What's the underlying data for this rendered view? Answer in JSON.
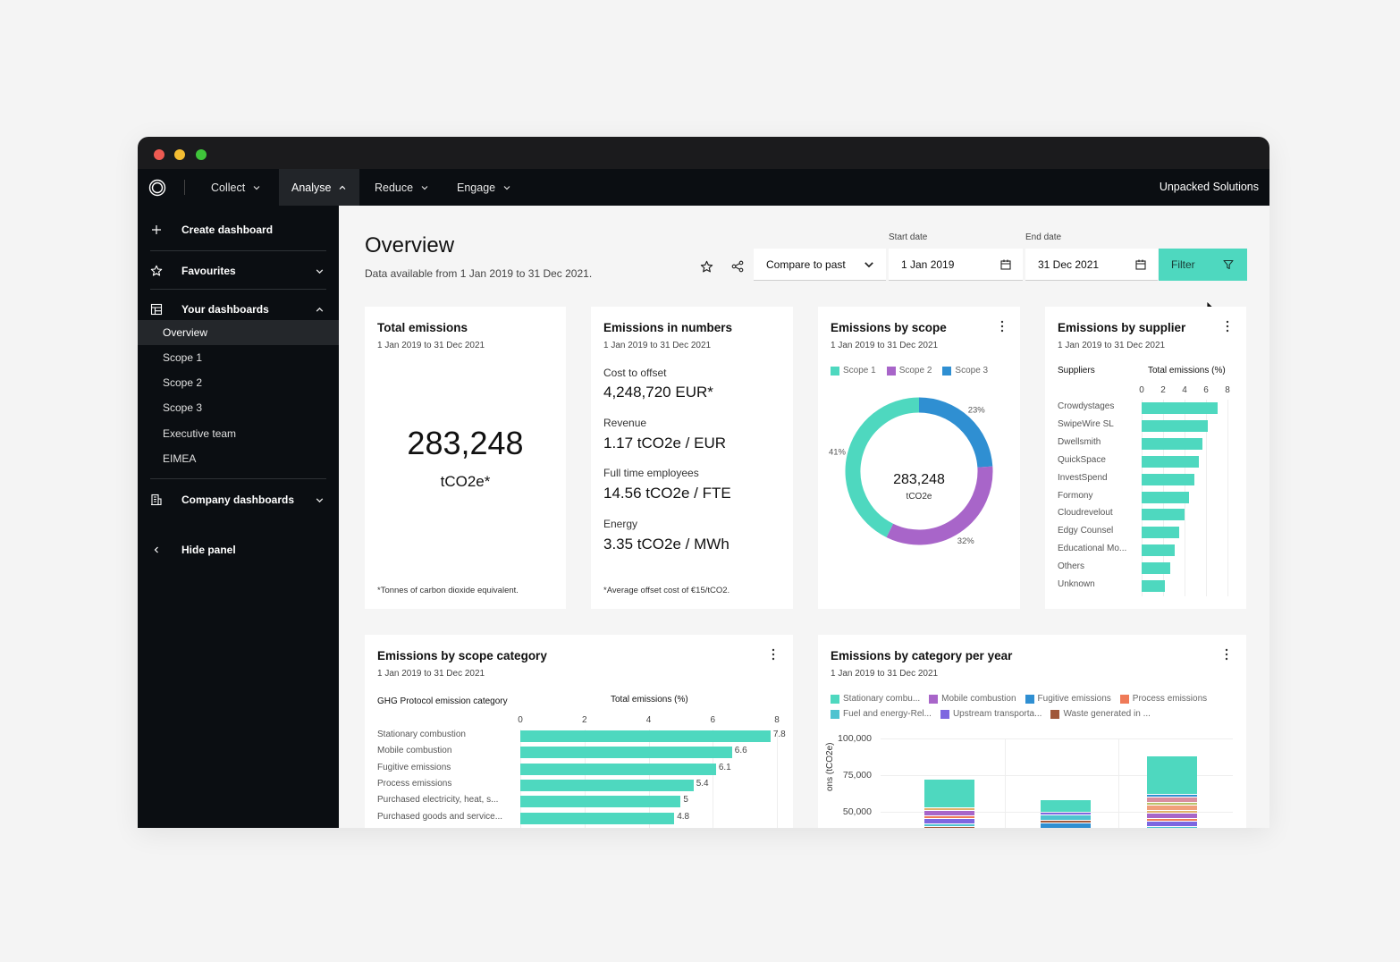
{
  "nav": {
    "items": [
      {
        "label": "Collect",
        "active": false
      },
      {
        "label": "Analyse",
        "active": true
      },
      {
        "label": "Reduce",
        "active": false
      },
      {
        "label": "Engage",
        "active": false
      }
    ],
    "org_name": "Unpacked Solutions"
  },
  "sidebar": {
    "create": "Create dashboard",
    "favourites": "Favourites",
    "your_dashboards": "Your dashboards",
    "dashboards": [
      "Overview",
      "Scope 1",
      "Scope 2",
      "Scope 3",
      "Executive team",
      "EIMEA"
    ],
    "company_dashboards": "Company dashboards",
    "hide_panel": "Hide panel"
  },
  "header": {
    "title": "Overview",
    "subtitle": "Data available from 1 Jan 2019 to 31 Dec 2021.",
    "compare": "Compare to past",
    "start_label": "Start date",
    "start_value": "1 Jan 2019",
    "end_label": "End date",
    "end_value": "31 Dec 2021",
    "filter": "Filter"
  },
  "colors": {
    "teal": "#4ed8bf",
    "purple": "#a865c9",
    "blue": "#2f8fd2",
    "orange": "#ef7a58",
    "violet": "#7d67e0",
    "brown": "#a0583a"
  },
  "cards": {
    "total": {
      "title": "Total emissions",
      "range": "1 Jan 2019 to 31 Dec 2021",
      "value": "283,248",
      "unit": "tCO2e*",
      "note": "*Tonnes of carbon dioxide equivalent."
    },
    "numbers": {
      "title": "Emissions in numbers",
      "range": "1 Jan 2019 to 31 Dec 2021",
      "metrics": [
        {
          "label": "Cost to offset",
          "value": "4,248,720 EUR*"
        },
        {
          "label": "Revenue",
          "value": "1.17 tCO2e / EUR"
        },
        {
          "label": "Full time employees",
          "value": "14.56 tCO2e / FTE"
        },
        {
          "label": "Energy",
          "value": "3.35 tCO2e / MWh"
        }
      ],
      "note": "*Average offset cost of €15/tCO2."
    },
    "scope": {
      "title": "Emissions by scope",
      "range": "1 Jan 2019 to 31 Dec 2021",
      "center_value": "283,248",
      "center_unit": "tCO2e"
    },
    "supplier": {
      "title": "Emissions by supplier",
      "range": "1 Jan 2019 to 31 Dec 2021",
      "col_left": "Suppliers",
      "col_right": "Total emissions (%)"
    },
    "scope_category": {
      "title": "Emissions by scope category",
      "range": "1 Jan 2019 to 31 Dec 2021",
      "col_left": "GHG Protocol emission category",
      "col_right": "Total emissions (%)"
    },
    "category_year": {
      "title": "Emissions by category per year",
      "range": "1 Jan 2019 to 31 Dec 2021",
      "ylabel_fragment": "ons (tCO2e)"
    }
  },
  "chart_data": [
    {
      "type": "pie",
      "name": "Emissions by scope",
      "categories": [
        "Scope 1",
        "Scope 2",
        "Scope 3"
      ],
      "values": [
        41,
        32,
        23
      ],
      "labels": [
        "41%",
        "32%",
        "23%"
      ],
      "colors": [
        "#4ed8bf",
        "#a865c9",
        "#2f8fd2"
      ],
      "legend": "top"
    },
    {
      "type": "bar",
      "orientation": "horizontal",
      "name": "Emissions by supplier",
      "categories": [
        "Crowdystages",
        "SwipeWire SL",
        "Dwellsmith",
        "QuickSpace",
        "InvestSpend",
        "Formony",
        "Cloudrevelout",
        "Edgy Counsel",
        "Educational Mo...",
        "Others",
        "Unknown"
      ],
      "values": [
        7.1,
        6.2,
        5.7,
        5.3,
        4.9,
        4.4,
        4.0,
        3.5,
        3.1,
        2.7,
        2.2
      ],
      "xlim": [
        0,
        8
      ],
      "xticks": [
        0,
        2,
        4,
        6,
        8
      ]
    },
    {
      "type": "bar",
      "orientation": "horizontal",
      "name": "Emissions by scope category",
      "categories": [
        "Stationary combustion",
        "Mobile combustion",
        "Fugitive emissions",
        "Process emissions",
        "Purchased electricity, heat, s...",
        "Purchased goods and service..."
      ],
      "values": [
        7.8,
        6.6,
        6.1,
        5.4,
        5,
        4.8
      ],
      "value_labels": [
        "7.8",
        "6.6",
        "6.1",
        "5.4",
        "5",
        "4.8"
      ],
      "xlim": [
        0,
        8
      ],
      "xticks": [
        0,
        2,
        4,
        6,
        8
      ]
    },
    {
      "type": "bar",
      "stacked": true,
      "name": "Emissions by category per year",
      "legend_items": [
        {
          "name": "Stationary combu...",
          "color": "#4ed8bf"
        },
        {
          "name": "Mobile combustion",
          "color": "#a865c9"
        },
        {
          "name": "Fugitive emissions",
          "color": "#2f8fd2"
        },
        {
          "name": "Process emissions",
          "color": "#ef7a58"
        },
        {
          "name": "Fuel and energy-Rel...",
          "color": "#4ec3d0"
        },
        {
          "name": "Upstream transporta...",
          "color": "#7d67e0"
        },
        {
          "name": "Waste generated in ...",
          "color": "#a0583a"
        }
      ],
      "yticks": [
        "100,000",
        "75,000",
        "50,000"
      ],
      "ylim": [
        45000,
        100000
      ],
      "bar_tops": [
        72000,
        58000,
        88000
      ],
      "stationary_bottoms": [
        53000,
        50000,
        62000
      ]
    }
  ]
}
